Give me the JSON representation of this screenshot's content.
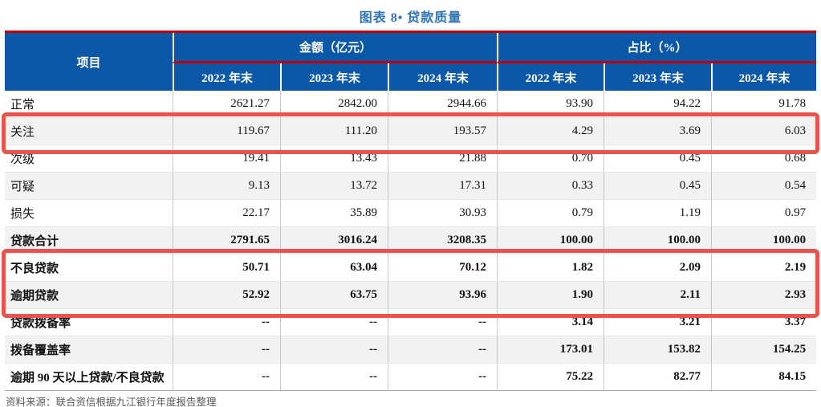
{
  "title": "图表 8• 贷款质量",
  "table": {
    "corner_header": "项目",
    "groups": [
      {
        "label": "金额（亿元）",
        "sub": [
          "2022 年末",
          "2023 年末",
          "2024 年末"
        ]
      },
      {
        "label": "占比（%）",
        "sub": [
          "2022 年末",
          "2023 年末",
          "2024 年末"
        ]
      }
    ],
    "rows": [
      {
        "label": "正常",
        "bold": false,
        "highlight": false,
        "values": [
          "2621.27",
          "2842.00",
          "2944.66",
          "93.90",
          "94.22",
          "91.78"
        ]
      },
      {
        "label": "关注",
        "bold": false,
        "highlight": true,
        "values": [
          "119.67",
          "111.20",
          "193.57",
          "4.29",
          "3.69",
          "6.03"
        ]
      },
      {
        "label": "次级",
        "bold": false,
        "highlight": false,
        "values": [
          "19.41",
          "13.43",
          "21.88",
          "0.70",
          "0.45",
          "0.68"
        ]
      },
      {
        "label": "可疑",
        "bold": false,
        "highlight": false,
        "values": [
          "9.13",
          "13.72",
          "17.31",
          "0.33",
          "0.45",
          "0.54"
        ]
      },
      {
        "label": "损失",
        "bold": false,
        "highlight": false,
        "values": [
          "22.17",
          "35.89",
          "30.93",
          "0.79",
          "1.19",
          "0.97"
        ]
      },
      {
        "label": "贷款合计",
        "bold": true,
        "highlight": false,
        "values": [
          "2791.65",
          "3016.24",
          "3208.35",
          "100.00",
          "100.00",
          "100.00"
        ]
      },
      {
        "label": "不良贷款",
        "bold": true,
        "highlight": true,
        "values": [
          "50.71",
          "63.04",
          "70.12",
          "1.82",
          "2.09",
          "2.19"
        ]
      },
      {
        "label": "逾期贷款",
        "bold": true,
        "highlight": true,
        "values": [
          "52.92",
          "63.75",
          "93.96",
          "1.90",
          "2.11",
          "2.93"
        ]
      },
      {
        "label": "贷款拨备率",
        "bold": true,
        "highlight": false,
        "values": [
          "--",
          "--",
          "--",
          "3.14",
          "3.21",
          "3.37"
        ]
      },
      {
        "label": "拨备覆盖率",
        "bold": true,
        "highlight": false,
        "values": [
          "--",
          "--",
          "--",
          "173.01",
          "153.82",
          "154.25"
        ]
      },
      {
        "label": "逾期 90 天以上贷款/不良贷款",
        "bold": true,
        "highlight": false,
        "values": [
          "--",
          "--",
          "--",
          "75.22",
          "82.77",
          "84.15"
        ]
      }
    ]
  },
  "footer": {
    "source": "资料来源：联合资信根据九江银行年度报告整理"
  },
  "colors": {
    "page_bg": "#ffffff",
    "title_blue": "#2E74B5",
    "header_blue": "#0B57A8",
    "line_red": "#C00000",
    "highlight_red": "#E9534E",
    "alt_row": "#F2F2F2",
    "footer_gray": "#595959"
  }
}
